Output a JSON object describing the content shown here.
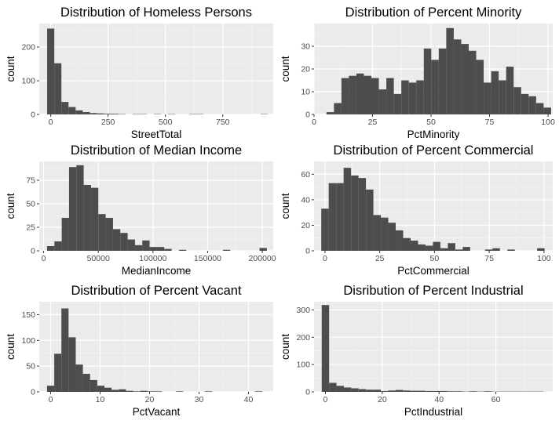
{
  "chart_data": [
    {
      "type": "bar",
      "title": "Distribution of Homeless Persons",
      "xlabel": "StreetTotal",
      "ylabel": "count",
      "xlim": [
        -50,
        970
      ],
      "ylim": [
        0,
        270
      ],
      "xticks": [
        0,
        250,
        500,
        750
      ],
      "yticks": [
        0,
        100,
        200
      ],
      "binwidth": 31,
      "bins": [
        {
          "x": 0,
          "count": 255
        },
        {
          "x": 31,
          "count": 152
        },
        {
          "x": 62,
          "count": 37
        },
        {
          "x": 93,
          "count": 22
        },
        {
          "x": 124,
          "count": 12
        },
        {
          "x": 155,
          "count": 7
        },
        {
          "x": 186,
          "count": 4
        },
        {
          "x": 217,
          "count": 3
        },
        {
          "x": 248,
          "count": 2
        },
        {
          "x": 279,
          "count": 2
        },
        {
          "x": 310,
          "count": 1
        },
        {
          "x": 372,
          "count": 1
        },
        {
          "x": 403,
          "count": 1
        },
        {
          "x": 465,
          "count": 1
        },
        {
          "x": 527,
          "count": 1
        },
        {
          "x": 620,
          "count": 1
        },
        {
          "x": 651,
          "count": 1
        },
        {
          "x": 930,
          "count": 1
        }
      ]
    },
    {
      "type": "bar",
      "title": "Distribution of Percent Minority",
      "xlabel": "PctMinority",
      "ylabel": "count",
      "xlim": [
        0,
        102
      ],
      "ylim": [
        0,
        40
      ],
      "xticks": [
        0,
        25,
        50,
        75,
        100
      ],
      "yticks": [
        0,
        10,
        20,
        30
      ],
      "binwidth": 3.2,
      "bins": [
        {
          "x": 6.9,
          "count": 1
        },
        {
          "x": 10.1,
          "count": 5
        },
        {
          "x": 13.3,
          "count": 16
        },
        {
          "x": 16.5,
          "count": 17
        },
        {
          "x": 19.7,
          "count": 18
        },
        {
          "x": 22.9,
          "count": 17
        },
        {
          "x": 26.1,
          "count": 16
        },
        {
          "x": 29.3,
          "count": 11
        },
        {
          "x": 32.5,
          "count": 16
        },
        {
          "x": 35.7,
          "count": 9
        },
        {
          "x": 38.9,
          "count": 15
        },
        {
          "x": 42.1,
          "count": 14
        },
        {
          "x": 45.3,
          "count": 15
        },
        {
          "x": 48.5,
          "count": 29
        },
        {
          "x": 51.7,
          "count": 24
        },
        {
          "x": 54.9,
          "count": 29
        },
        {
          "x": 58.1,
          "count": 38
        },
        {
          "x": 61.3,
          "count": 33
        },
        {
          "x": 64.5,
          "count": 31
        },
        {
          "x": 67.7,
          "count": 28
        },
        {
          "x": 70.9,
          "count": 24
        },
        {
          "x": 74.1,
          "count": 14
        },
        {
          "x": 77.3,
          "count": 19
        },
        {
          "x": 80.5,
          "count": 15
        },
        {
          "x": 83.7,
          "count": 21
        },
        {
          "x": 86.9,
          "count": 12
        },
        {
          "x": 90.1,
          "count": 9
        },
        {
          "x": 93.3,
          "count": 8
        },
        {
          "x": 96.5,
          "count": 5
        },
        {
          "x": 99.7,
          "count": 3
        }
      ]
    },
    {
      "type": "bar",
      "title": "Distribution of Median Income",
      "xlabel": "MedianIncome",
      "ylabel": "count",
      "xlim": [
        -4000,
        210000
      ],
      "ylim": [
        0,
        95
      ],
      "xticks": [
        0,
        50000,
        100000,
        150000,
        200000
      ],
      "yticks": [
        0,
        25,
        50,
        75
      ],
      "binwidth": 6700,
      "bins": [
        {
          "x": 6500,
          "count": 5
        },
        {
          "x": 13200,
          "count": 10
        },
        {
          "x": 19900,
          "count": 35
        },
        {
          "x": 26600,
          "count": 89
        },
        {
          "x": 33300,
          "count": 91
        },
        {
          "x": 40000,
          "count": 70
        },
        {
          "x": 46700,
          "count": 67
        },
        {
          "x": 53400,
          "count": 39
        },
        {
          "x": 60100,
          "count": 35
        },
        {
          "x": 66800,
          "count": 23
        },
        {
          "x": 73500,
          "count": 19
        },
        {
          "x": 80200,
          "count": 12
        },
        {
          "x": 86900,
          "count": 6
        },
        {
          "x": 93600,
          "count": 11
        },
        {
          "x": 100300,
          "count": 4
        },
        {
          "x": 107000,
          "count": 4
        },
        {
          "x": 113700,
          "count": 2
        },
        {
          "x": 127100,
          "count": 1
        },
        {
          "x": 167300,
          "count": 1
        },
        {
          "x": 200800,
          "count": 3
        }
      ]
    },
    {
      "type": "bar",
      "title": "Distribution of Percent Commercial",
      "xlabel": "PctCommercial",
      "ylabel": "count",
      "xlim": [
        -5,
        104
      ],
      "ylim": [
        0,
        70
      ],
      "xticks": [
        0,
        25,
        50,
        75,
        100
      ],
      "yticks": [
        0,
        20,
        40,
        60
      ],
      "binwidth": 3.4,
      "bins": [
        {
          "x": 0,
          "count": 33
        },
        {
          "x": 3.4,
          "count": 53
        },
        {
          "x": 6.8,
          "count": 53
        },
        {
          "x": 10.2,
          "count": 65
        },
        {
          "x": 13.6,
          "count": 59
        },
        {
          "x": 17.0,
          "count": 57
        },
        {
          "x": 20.4,
          "count": 48
        },
        {
          "x": 23.8,
          "count": 28
        },
        {
          "x": 27.2,
          "count": 26
        },
        {
          "x": 30.6,
          "count": 22
        },
        {
          "x": 34.0,
          "count": 16
        },
        {
          "x": 37.4,
          "count": 10
        },
        {
          "x": 40.8,
          "count": 8
        },
        {
          "x": 44.2,
          "count": 5
        },
        {
          "x": 47.6,
          "count": 4
        },
        {
          "x": 51.0,
          "count": 7
        },
        {
          "x": 54.4,
          "count": 2
        },
        {
          "x": 57.8,
          "count": 6
        },
        {
          "x": 61.2,
          "count": 1
        },
        {
          "x": 64.6,
          "count": 3
        },
        {
          "x": 74.8,
          "count": 1
        },
        {
          "x": 78.2,
          "count": 2
        },
        {
          "x": 85.0,
          "count": 1
        },
        {
          "x": 98.6,
          "count": 2
        }
      ]
    },
    {
      "type": "bar",
      "title": "Distribution of Percent Vacant",
      "xlabel": "PctVacant",
      "ylabel": "count",
      "xlim": [
        -2.3,
        45
      ],
      "ylim": [
        0,
        175
      ],
      "xticks": [
        0,
        10,
        20,
        30,
        40
      ],
      "yticks": [
        0,
        50,
        100,
        150
      ],
      "binwidth": 1.45,
      "bins": [
        {
          "x": 0.0,
          "count": 12
        },
        {
          "x": 1.45,
          "count": 74
        },
        {
          "x": 2.9,
          "count": 162
        },
        {
          "x": 4.35,
          "count": 106
        },
        {
          "x": 5.8,
          "count": 53
        },
        {
          "x": 7.25,
          "count": 35
        },
        {
          "x": 8.7,
          "count": 23
        },
        {
          "x": 10.15,
          "count": 12
        },
        {
          "x": 11.6,
          "count": 8
        },
        {
          "x": 13.05,
          "count": 4
        },
        {
          "x": 14.5,
          "count": 5
        },
        {
          "x": 15.95,
          "count": 2
        },
        {
          "x": 17.4,
          "count": 1
        },
        {
          "x": 18.85,
          "count": 2
        },
        {
          "x": 20.3,
          "count": 1
        },
        {
          "x": 21.75,
          "count": 1
        },
        {
          "x": 26.1,
          "count": 1
        },
        {
          "x": 31.9,
          "count": 1
        },
        {
          "x": 42.05,
          "count": 1
        }
      ]
    },
    {
      "type": "bar",
      "title": "Disribution of Percent Industrial",
      "xlabel": "PctIndustrial",
      "ylabel": "count",
      "xlim": [
        -4,
        80
      ],
      "ylim": [
        0,
        330
      ],
      "xticks": [
        0,
        20,
        40,
        60
      ],
      "yticks": [
        0,
        100,
        200,
        300
      ],
      "binwidth": 2.6,
      "bins": [
        {
          "x": 0.0,
          "count": 318
        },
        {
          "x": 2.6,
          "count": 33
        },
        {
          "x": 5.2,
          "count": 22
        },
        {
          "x": 7.8,
          "count": 16
        },
        {
          "x": 10.4,
          "count": 13
        },
        {
          "x": 13.0,
          "count": 10
        },
        {
          "x": 15.6,
          "count": 8
        },
        {
          "x": 18.2,
          "count": 8
        },
        {
          "x": 20.8,
          "count": 3
        },
        {
          "x": 23.4,
          "count": 5
        },
        {
          "x": 26.0,
          "count": 7
        },
        {
          "x": 28.6,
          "count": 5
        },
        {
          "x": 31.2,
          "count": 4
        },
        {
          "x": 33.8,
          "count": 4
        },
        {
          "x": 36.4,
          "count": 3
        },
        {
          "x": 39.0,
          "count": 3
        },
        {
          "x": 41.6,
          "count": 3
        },
        {
          "x": 44.2,
          "count": 2
        },
        {
          "x": 46.8,
          "count": 2
        },
        {
          "x": 49.4,
          "count": 1
        },
        {
          "x": 52.0,
          "count": 2
        },
        {
          "x": 54.6,
          "count": 1
        },
        {
          "x": 57.2,
          "count": 2
        },
        {
          "x": 59.8,
          "count": 1
        },
        {
          "x": 62.4,
          "count": 1
        },
        {
          "x": 65.0,
          "count": 1
        },
        {
          "x": 67.6,
          "count": 1
        },
        {
          "x": 70.2,
          "count": 1
        },
        {
          "x": 72.8,
          "count": 1
        },
        {
          "x": 75.4,
          "count": 1
        }
      ]
    }
  ]
}
